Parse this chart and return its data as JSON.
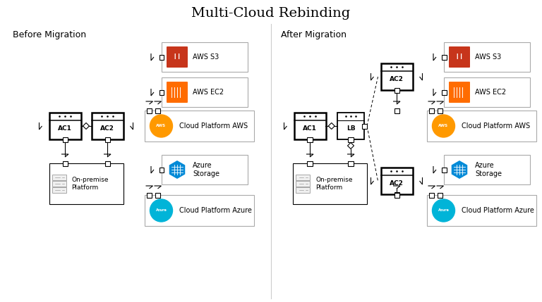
{
  "title": "Multi-Cloud Rebinding",
  "before_label": "Before Migration",
  "after_label": "After Migration",
  "bg_color": "#ffffff",
  "title_fontsize": 14,
  "section_fontsize": 9,
  "divider_color": "#cccccc"
}
